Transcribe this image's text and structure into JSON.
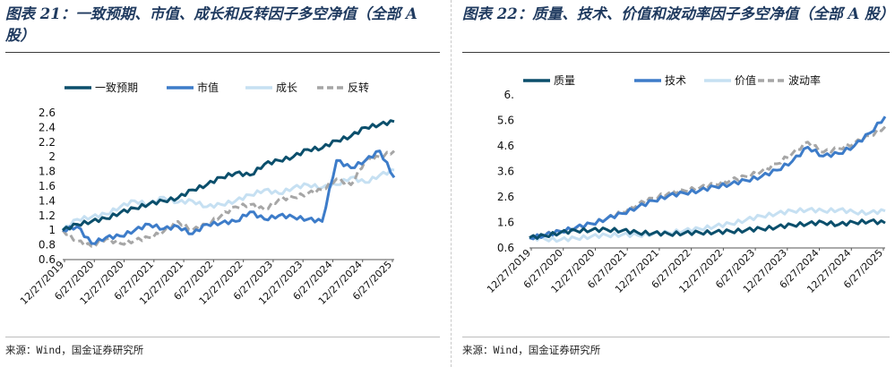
{
  "left": {
    "title": "图表 21：一致预期、市值、成长和反转因子多空净值（全部 A 股）",
    "source": "来源：Wind，国金证券研究所"
  },
  "right": {
    "title": "图表 22：质量、技术、价值和波动率因子多空净值（全部 A 股）",
    "source": "来源：Wind，国金证券研究所"
  },
  "chart_data": [
    {
      "type": "line",
      "yticks": [
        "2.6",
        "2.4",
        "2.2",
        "2",
        "1.8",
        "1.6",
        "1.4",
        "1.2",
        "1",
        "0.8",
        "0.6"
      ],
      "ylim": [
        0.6,
        2.6
      ],
      "xticks": [
        "12/27/2019",
        "6/27/2020",
        "12/27/2020",
        "6/27/2021",
        "12/27/2021",
        "6/27/2022",
        "12/27/2022",
        "6/27/2023",
        "12/27/2023",
        "6/27/2024",
        "12/27/2024",
        "6/27/2025"
      ],
      "legend_position": "top",
      "series": [
        {
          "name": "一致预期",
          "color": "#0b4f6c",
          "dash": false,
          "values": [
            1.0,
            1.08,
            1.12,
            1.16,
            1.24,
            1.3,
            1.36,
            1.4,
            1.44,
            1.55,
            1.62,
            1.72,
            1.78,
            1.75,
            1.9,
            1.95,
            2.0,
            2.1,
            2.12,
            2.22,
            2.28,
            2.4,
            2.44,
            2.48
          ]
        },
        {
          "name": "市值",
          "color": "#3d7cc9",
          "dash": false,
          "values": [
            1.0,
            1.05,
            0.82,
            0.9,
            0.92,
            1.0,
            1.08,
            1.02,
            1.05,
            0.95,
            1.08,
            1.1,
            1.12,
            1.25,
            1.15,
            1.2,
            1.18,
            1.15,
            1.12,
            1.95,
            1.85,
            1.95,
            2.08,
            1.72
          ]
        },
        {
          "name": "成长",
          "color": "#c6e0f2",
          "dash": false,
          "values": [
            1.0,
            1.15,
            1.18,
            1.22,
            1.32,
            1.4,
            1.35,
            1.45,
            1.38,
            1.4,
            1.32,
            1.35,
            1.4,
            1.48,
            1.55,
            1.5,
            1.58,
            1.62,
            1.58,
            1.62,
            1.72,
            1.65,
            1.75,
            1.82
          ]
        },
        {
          "name": "反转",
          "color": "#a6a6a6",
          "dash": true,
          "values": [
            1.0,
            0.85,
            0.78,
            0.88,
            0.82,
            0.86,
            0.9,
            0.98,
            1.12,
            1.0,
            1.08,
            1.2,
            1.32,
            1.35,
            1.28,
            1.42,
            1.45,
            1.5,
            1.55,
            1.7,
            1.62,
            1.95,
            2.0,
            2.08
          ]
        }
      ]
    },
    {
      "type": "line",
      "yticks": [
        "6.",
        "5.6",
        "4.6",
        "3.6",
        "2.6",
        "1.6",
        "0.6"
      ],
      "ylim": [
        0.6,
        6.6
      ],
      "xticks": [
        "12/27/2019",
        "6/27/2020",
        "12/27/2020",
        "6/27/2021",
        "12/27/2021",
        "6/27/2022",
        "12/27/2022",
        "6/27/2023",
        "12/27/2023",
        "6/27/2024",
        "12/27/2024",
        "6/27/2025"
      ],
      "legend_position": "top",
      "series": [
        {
          "name": "质量",
          "color": "#0b4f6c",
          "dash": false,
          "values": [
            1.0,
            1.08,
            1.2,
            1.28,
            1.3,
            1.32,
            1.28,
            1.2,
            1.18,
            1.15,
            1.18,
            1.2,
            1.22,
            1.25,
            1.3,
            1.35,
            1.42,
            1.5,
            1.55,
            1.6,
            1.52,
            1.6,
            1.65,
            1.58
          ]
        },
        {
          "name": "技术",
          "color": "#3d7cc9",
          "dash": false,
          "values": [
            1.0,
            1.1,
            1.25,
            1.4,
            1.55,
            1.75,
            1.95,
            2.2,
            2.45,
            2.65,
            2.75,
            2.85,
            3.0,
            3.1,
            3.25,
            3.4,
            3.65,
            4.0,
            4.55,
            4.2,
            4.3,
            4.6,
            5.1,
            5.75
          ]
        },
        {
          "name": "价值",
          "color": "#c6e0f2",
          "dash": false,
          "values": [
            1.0,
            0.95,
            0.92,
            0.98,
            1.05,
            1.1,
            1.12,
            1.1,
            1.15,
            1.2,
            1.28,
            1.35,
            1.45,
            1.55,
            1.7,
            1.85,
            1.95,
            2.05,
            2.1,
            2.05,
            2.1,
            2.0,
            1.98,
            2.05
          ]
        },
        {
          "name": "波动率",
          "color": "#a6a6a6",
          "dash": true,
          "values": [
            1.0,
            1.12,
            1.25,
            1.38,
            1.55,
            1.75,
            2.0,
            2.3,
            2.55,
            2.75,
            2.85,
            2.95,
            3.1,
            3.25,
            3.4,
            3.6,
            3.9,
            4.3,
            4.75,
            4.35,
            4.5,
            4.7,
            5.0,
            5.35
          ]
        }
      ]
    }
  ]
}
